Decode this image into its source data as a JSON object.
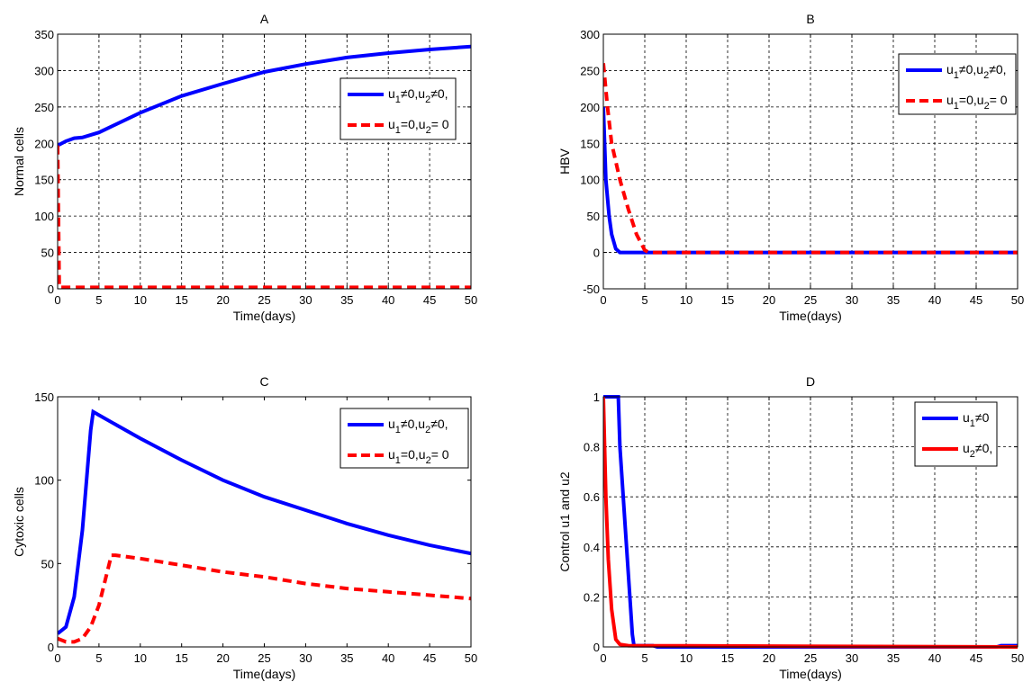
{
  "chart_data": [
    {
      "type": "line",
      "title": "A",
      "xlabel": "Time(days)",
      "ylabel": "Normal cells",
      "xlim": [
        0,
        50
      ],
      "ylim": [
        0,
        350
      ],
      "yticks": [
        0,
        50,
        100,
        150,
        200,
        250,
        300,
        350
      ],
      "xticks": [
        0,
        5,
        10,
        15,
        20,
        25,
        30,
        35,
        40,
        45,
        50
      ],
      "grid": true,
      "legend_placement": "top-right",
      "series": [
        {
          "name": "u_1≠0,u_2≠0,",
          "color": "#0000ff",
          "style": "solid",
          "x": [
            0,
            1,
            2,
            3,
            5,
            10,
            15,
            20,
            25,
            30,
            35,
            40,
            45,
            50
          ],
          "y": [
            197,
            203,
            207,
            208,
            215,
            242,
            265,
            282,
            298,
            309,
            318,
            324,
            329,
            333
          ]
        },
        {
          "name": "u_1=0,u_2= 0",
          "color": "#ff0000",
          "style": "dashed",
          "x": [
            0,
            0.2,
            50
          ],
          "y": [
            197,
            2,
            2
          ]
        }
      ]
    },
    {
      "type": "line",
      "title": "B",
      "xlabel": "Time(days)",
      "ylabel": "HBV",
      "xlim": [
        0,
        50
      ],
      "ylim": [
        -50,
        300
      ],
      "yticks": [
        -50,
        0,
        50,
        100,
        150,
        200,
        250,
        300
      ],
      "xticks": [
        0,
        5,
        10,
        15,
        20,
        25,
        30,
        35,
        40,
        45,
        50
      ],
      "grid": true,
      "legend_placement": "top-right",
      "series": [
        {
          "name": "u_1≠0,u_2≠0,",
          "color": "#0000ff",
          "style": "solid",
          "x": [
            0,
            0.3,
            0.7,
            1,
            1.5,
            2,
            50
          ],
          "y": [
            200,
            100,
            50,
            25,
            5,
            0,
            0
          ]
        },
        {
          "name": "u_1=0,u_2= 0",
          "color": "#ff0000",
          "style": "dashed",
          "x": [
            0,
            0.5,
            1,
            2,
            3,
            4,
            5,
            5.5,
            50
          ],
          "y": [
            260,
            200,
            150,
            100,
            60,
            25,
            3,
            0,
            0
          ]
        }
      ]
    },
    {
      "type": "line",
      "title": "C",
      "xlabel": "Time(days)",
      "ylabel": "Cytoxic cells",
      "xlim": [
        0,
        50
      ],
      "ylim": [
        0,
        150
      ],
      "yticks": [
        0,
        50,
        100,
        150
      ],
      "xticks": [
        0,
        5,
        10,
        15,
        20,
        25,
        30,
        35,
        40,
        45,
        50
      ],
      "grid": false,
      "legend_placement": "top-right",
      "series": [
        {
          "name": "u_1≠0,u_2≠0,",
          "color": "#0000ff",
          "style": "solid",
          "x": [
            0,
            1,
            2,
            3,
            4,
            4.3,
            5,
            10,
            15,
            20,
            25,
            30,
            35,
            40,
            45,
            50
          ],
          "y": [
            8,
            12,
            30,
            70,
            130,
            141,
            139,
            125,
            112,
            100,
            90,
            82,
            74,
            67,
            61,
            56
          ]
        },
        {
          "name": "u_1=0,u_2= 0",
          "color": "#ff0000",
          "style": "dashed",
          "x": [
            0,
            1,
            2,
            3,
            4,
            5,
            6,
            6.5,
            7,
            10,
            15,
            20,
            25,
            30,
            35,
            40,
            45,
            50
          ],
          "y": [
            5,
            3,
            3,
            5,
            12,
            25,
            45,
            55,
            55,
            53,
            49,
            45,
            42,
            38,
            35,
            33,
            31,
            29
          ]
        }
      ]
    },
    {
      "type": "line",
      "title": "D",
      "xlabel": "Time(days)",
      "ylabel": "Control u1 and u2",
      "xlim": [
        0,
        50
      ],
      "ylim": [
        0,
        1
      ],
      "yticks": [
        0,
        0.2,
        0.4,
        0.6,
        0.8,
        1
      ],
      "xticks": [
        0,
        5,
        10,
        15,
        20,
        25,
        30,
        35,
        40,
        45,
        50
      ],
      "grid": true,
      "legend_placement": "top-right",
      "series": [
        {
          "name": "u_1≠0",
          "color": "#0000ff",
          "style": "solid",
          "x": [
            0,
            1.8,
            2,
            2.5,
            3,
            3.5,
            3.7,
            6,
            6.5,
            47.5,
            48,
            50
          ],
          "y": [
            1,
            1,
            0.8,
            0.55,
            0.3,
            0.05,
            0.005,
            0.005,
            0,
            0,
            0.005,
            0.005
          ]
        },
        {
          "name": "u_2≠0,",
          "color": "#ff0000",
          "style": "solid",
          "x": [
            0,
            0.3,
            0.6,
            1,
            1.5,
            2,
            3,
            50
          ],
          "y": [
            1,
            0.6,
            0.35,
            0.15,
            0.03,
            0.01,
            0.005,
            0
          ]
        }
      ]
    }
  ]
}
